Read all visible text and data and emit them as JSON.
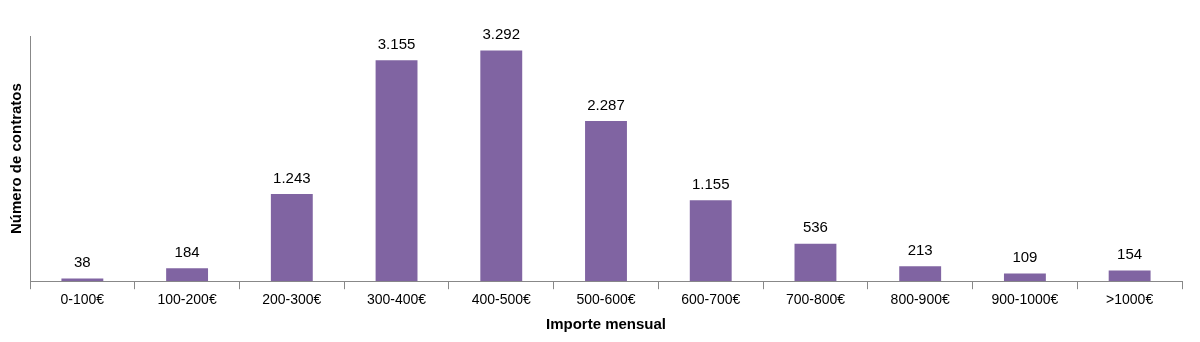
{
  "chart_data": {
    "type": "bar",
    "xlabel": "Importe mensual",
    "ylabel": "Número de contratos",
    "categories": [
      "0-100€",
      "100-200€",
      "200-300€",
      "300-400€",
      "400-500€",
      "500-600€",
      "600-700€",
      "700-800€",
      "800-900€",
      "900-1000€",
      ">1000€"
    ],
    "series": [
      {
        "color": "#8064a2",
        "values": [
          38,
          184,
          1243,
          3155,
          3292,
          2287,
          1155,
          536,
          213,
          109,
          154
        ],
        "value_labels": [
          "38",
          "184",
          "1.243",
          "3.155",
          "3.292",
          "2.287",
          "1.155",
          "536",
          "213",
          "109",
          "154"
        ]
      }
    ],
    "grid": false,
    "legend": false,
    "tick_labels": "x"
  }
}
